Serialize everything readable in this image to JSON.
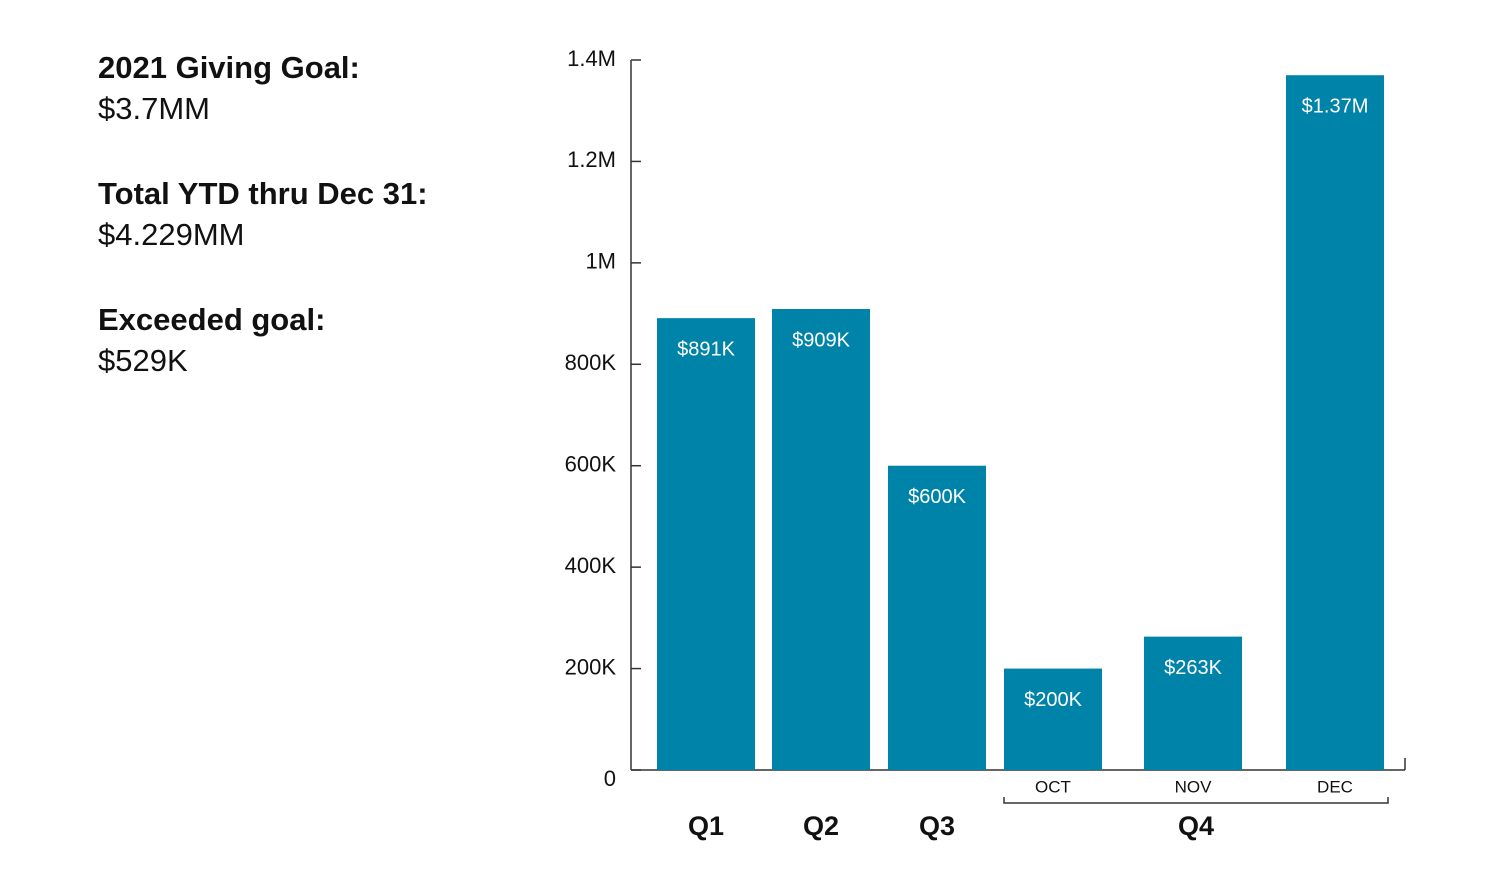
{
  "summary": [
    {
      "label": "2021 Giving Goal:",
      "value": "$3.7MM"
    },
    {
      "label": "Total YTD thru Dec 31:",
      "value": "$4.229MM"
    },
    {
      "label": "Exceeded goal:",
      "value": "$529K"
    }
  ],
  "chart_data": {
    "type": "bar",
    "categories": [
      null,
      null,
      null,
      "OCT",
      "NOV",
      "DEC"
    ],
    "quarters": [
      "Q1",
      "Q2",
      "Q3",
      "Q4"
    ],
    "values": [
      891000,
      909000,
      600000,
      200000,
      263000,
      1370000
    ],
    "value_labels": [
      "$891K",
      "$909K",
      "$600K",
      "$200K",
      "$263K",
      "$1.37M"
    ],
    "color": "#0083a9",
    "ylim": [
      0,
      1400000
    ],
    "yticks": [
      0,
      {
        "value": 200000,
        "label": "200K"
      },
      {
        "value": 400000,
        "label": "400K"
      },
      {
        "value": 600000,
        "label": "600K"
      },
      {
        "value": 800000,
        "label": "800K"
      },
      {
        "value": 1000000,
        "label": "1M"
      },
      {
        "value": 1200000,
        "label": "1.2M"
      },
      {
        "value": 1400000,
        "label": "1.4M"
      }
    ],
    "grid": false
  }
}
